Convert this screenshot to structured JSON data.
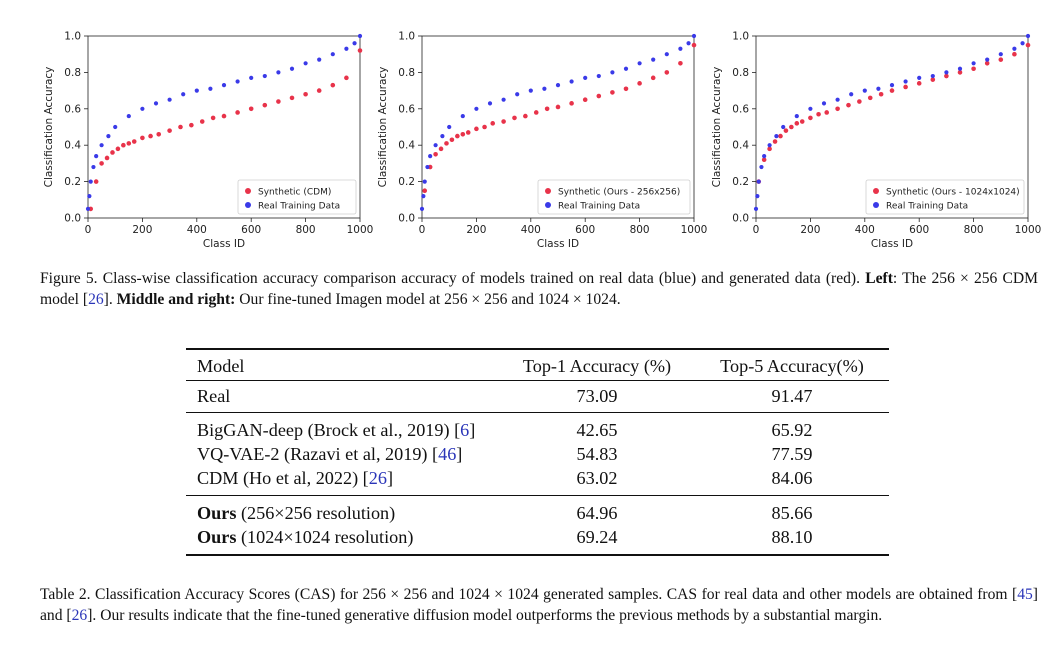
{
  "charts": [
    {
      "ylabel": "Classification Accuracy",
      "xlabel": "Class ID",
      "xticks": [
        "0",
        "200",
        "400",
        "600",
        "800",
        "1000"
      ],
      "yticks": [
        "0.0",
        "0.2",
        "0.4",
        "0.6",
        "0.8",
        "1.0"
      ],
      "legend": [
        "Synthetic (CDM)",
        "Real Training Data"
      ]
    },
    {
      "ylabel": "Classification Accuracy",
      "xlabel": "Class ID",
      "xticks": [
        "0",
        "200",
        "400",
        "600",
        "800",
        "1000"
      ],
      "yticks": [
        "0.0",
        "0.2",
        "0.4",
        "0.6",
        "0.8",
        "1.0"
      ],
      "legend": [
        "Synthetic (Ours - 256x256)",
        "Real Training Data"
      ]
    },
    {
      "ylabel": "Classification Accuracy",
      "xlabel": "Class ID",
      "xticks": [
        "0",
        "200",
        "400",
        "600",
        "800",
        "1000"
      ],
      "yticks": [
        "0.0",
        "0.2",
        "0.4",
        "0.6",
        "0.8",
        "1.0"
      ],
      "legend": [
        "Synthetic (Ours - 1024x1024)",
        "Real Training Data"
      ]
    }
  ],
  "chart_data": [
    {
      "type": "scatter",
      "xlim": [
        0,
        1000
      ],
      "ylim": [
        0,
        1
      ],
      "legend_position": "lower-right",
      "series": [
        {
          "name": "Synthetic (CDM)",
          "color": "#e8334a",
          "x": [
            10,
            30,
            50,
            70,
            90,
            110,
            130,
            150,
            170,
            200,
            230,
            260,
            300,
            340,
            380,
            420,
            460,
            500,
            550,
            600,
            650,
            700,
            750,
            800,
            850,
            900,
            950,
            1000
          ],
          "y": [
            0.05,
            0.2,
            0.3,
            0.33,
            0.36,
            0.38,
            0.4,
            0.41,
            0.42,
            0.44,
            0.45,
            0.46,
            0.48,
            0.5,
            0.51,
            0.53,
            0.55,
            0.56,
            0.58,
            0.6,
            0.62,
            0.64,
            0.66,
            0.68,
            0.7,
            0.73,
            0.77,
            0.92
          ]
        },
        {
          "name": "Real Training Data",
          "color": "#3a3ae8",
          "x": [
            0,
            5,
            10,
            20,
            30,
            50,
            75,
            100,
            150,
            200,
            250,
            300,
            350,
            400,
            450,
            500,
            550,
            600,
            650,
            700,
            750,
            800,
            850,
            900,
            950,
            980,
            1000
          ],
          "y": [
            0.05,
            0.12,
            0.2,
            0.28,
            0.34,
            0.4,
            0.45,
            0.5,
            0.56,
            0.6,
            0.63,
            0.65,
            0.68,
            0.7,
            0.71,
            0.73,
            0.75,
            0.77,
            0.78,
            0.8,
            0.82,
            0.85,
            0.87,
            0.9,
            0.93,
            0.96,
            1.0
          ]
        }
      ]
    },
    {
      "type": "scatter",
      "xlim": [
        0,
        1000
      ],
      "ylim": [
        0,
        1
      ],
      "legend_position": "lower-right",
      "series": [
        {
          "name": "Synthetic (Ours - 256x256)",
          "color": "#e8334a",
          "x": [
            10,
            30,
            50,
            70,
            90,
            110,
            130,
            150,
            170,
            200,
            230,
            260,
            300,
            340,
            380,
            420,
            460,
            500,
            550,
            600,
            650,
            700,
            750,
            800,
            850,
            900,
            950,
            1000
          ],
          "y": [
            0.15,
            0.28,
            0.35,
            0.38,
            0.41,
            0.43,
            0.45,
            0.46,
            0.47,
            0.49,
            0.5,
            0.52,
            0.53,
            0.55,
            0.56,
            0.58,
            0.6,
            0.61,
            0.63,
            0.65,
            0.67,
            0.69,
            0.71,
            0.74,
            0.77,
            0.8,
            0.85,
            0.95
          ]
        },
        {
          "name": "Real Training Data",
          "color": "#3a3ae8",
          "x": [
            0,
            5,
            10,
            20,
            30,
            50,
            75,
            100,
            150,
            200,
            250,
            300,
            350,
            400,
            450,
            500,
            550,
            600,
            650,
            700,
            750,
            800,
            850,
            900,
            950,
            980,
            1000
          ],
          "y": [
            0.05,
            0.12,
            0.2,
            0.28,
            0.34,
            0.4,
            0.45,
            0.5,
            0.56,
            0.6,
            0.63,
            0.65,
            0.68,
            0.7,
            0.71,
            0.73,
            0.75,
            0.77,
            0.78,
            0.8,
            0.82,
            0.85,
            0.87,
            0.9,
            0.93,
            0.96,
            1.0
          ]
        }
      ]
    },
    {
      "type": "scatter",
      "xlim": [
        0,
        1000
      ],
      "ylim": [
        0,
        1
      ],
      "legend_position": "lower-right",
      "series": [
        {
          "name": "Synthetic (Ours - 1024x1024)",
          "color": "#e8334a",
          "x": [
            10,
            30,
            50,
            70,
            90,
            110,
            130,
            150,
            170,
            200,
            230,
            260,
            300,
            340,
            380,
            420,
            460,
            500,
            550,
            600,
            650,
            700,
            750,
            800,
            850,
            900,
            950,
            1000
          ],
          "y": [
            0.2,
            0.32,
            0.38,
            0.42,
            0.45,
            0.48,
            0.5,
            0.52,
            0.53,
            0.55,
            0.57,
            0.58,
            0.6,
            0.62,
            0.64,
            0.66,
            0.68,
            0.7,
            0.72,
            0.74,
            0.76,
            0.78,
            0.8,
            0.82,
            0.85,
            0.87,
            0.9,
            0.95
          ]
        },
        {
          "name": "Real Training Data",
          "color": "#3a3ae8",
          "x": [
            0,
            5,
            10,
            20,
            30,
            50,
            75,
            100,
            150,
            200,
            250,
            300,
            350,
            400,
            450,
            500,
            550,
            600,
            650,
            700,
            750,
            800,
            850,
            900,
            950,
            980,
            1000
          ],
          "y": [
            0.05,
            0.12,
            0.2,
            0.28,
            0.34,
            0.4,
            0.45,
            0.5,
            0.56,
            0.6,
            0.63,
            0.65,
            0.68,
            0.7,
            0.71,
            0.73,
            0.75,
            0.77,
            0.78,
            0.8,
            0.82,
            0.85,
            0.87,
            0.9,
            0.93,
            0.96,
            1.0
          ]
        }
      ]
    }
  ],
  "figure_caption": {
    "label": "Figure 5.",
    "text1": "Class-wise classification accuracy comparison accuracy of models trained on real data (blue) and generated data (red).",
    "left_bold": "Left",
    "text2": ": The 256 × 256 CDM model [",
    "cite": "26",
    "text3": "].",
    "mr_bold": "Middle and right:",
    "text4": "Our fine-tuned Imagen model at 256 × 256 and 1024 × 1024."
  },
  "table": {
    "headers": [
      "Model",
      "Top-1 Accuracy (%)",
      "Top-5 Accuracy(%)"
    ],
    "real": {
      "model": "Real",
      "top1": "73.09",
      "top5": "91.47"
    },
    "baselines": [
      {
        "model": "BigGAN-deep (Brock et al., 2019) [",
        "cite": "6",
        "end": "]",
        "top1": "42.65",
        "top5": "65.92"
      },
      {
        "model": "VQ-VAE-2 (Razavi et al, 2019) [",
        "cite": "46",
        "end": "]",
        "top1": "54.83",
        "top5": "77.59"
      },
      {
        "model": "CDM (Ho et al, 2022) [",
        "cite": "26",
        "end": "]",
        "top1": "63.02",
        "top5": "84.06"
      }
    ],
    "ours": [
      {
        "bold": "Ours",
        "rest": "(256×256 resolution)",
        "top1": "64.96",
        "top5": "85.66"
      },
      {
        "bold": "Ours",
        "rest": "(1024×1024 resolution)",
        "top1": "69.24",
        "top5": "88.10"
      }
    ]
  },
  "table_caption": {
    "t1": "Table 2. Classification Accuracy Scores (CAS) for 256 × 256 and 1024 × 1024 generated samples. CAS for real data and other models are obtained from [",
    "c1": "45",
    "t2": "] and [",
    "c2": "26",
    "t3": "]. Our results indicate that the fine-tuned generative diffusion model outperforms the previous methods by a substantial margin."
  }
}
